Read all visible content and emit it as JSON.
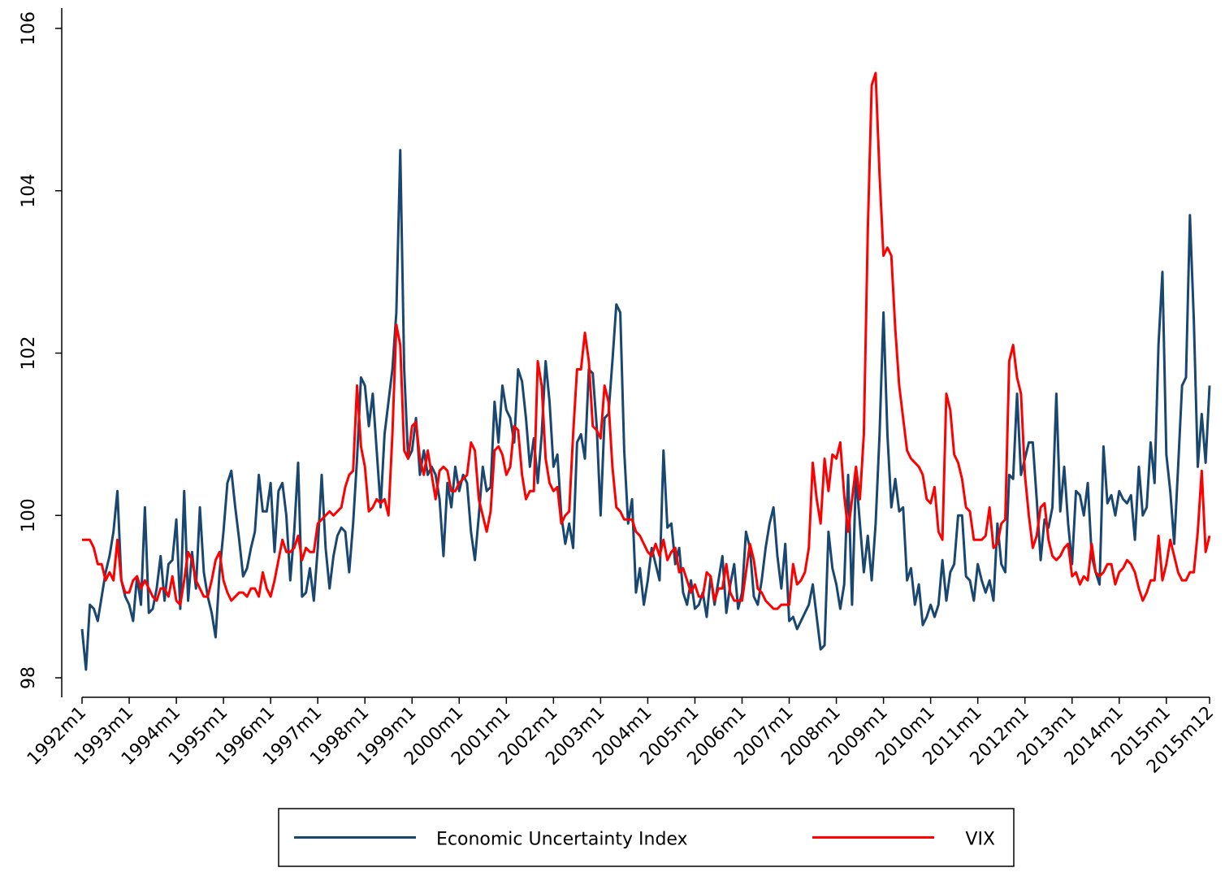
{
  "chart_data": {
    "type": "line",
    "categories": [
      "1992m1",
      null,
      null,
      null,
      null,
      null,
      null,
      null,
      null,
      null,
      null,
      null,
      "1993m1",
      null,
      null,
      null,
      null,
      null,
      null,
      null,
      null,
      null,
      null,
      null,
      "1994m1",
      null,
      null,
      null,
      null,
      null,
      null,
      null,
      null,
      null,
      null,
      null,
      "1995m1",
      null,
      null,
      null,
      null,
      null,
      null,
      null,
      null,
      null,
      null,
      null,
      "1996m1",
      null,
      null,
      null,
      null,
      null,
      null,
      null,
      null,
      null,
      null,
      null,
      "1997m1",
      null,
      null,
      null,
      null,
      null,
      null,
      null,
      null,
      null,
      null,
      null,
      "1998m1",
      null,
      null,
      null,
      null,
      null,
      null,
      null,
      null,
      null,
      null,
      null,
      "1999m1",
      null,
      null,
      null,
      null,
      null,
      null,
      null,
      null,
      null,
      null,
      null,
      "2000m1",
      null,
      null,
      null,
      null,
      null,
      null,
      null,
      null,
      null,
      null,
      null,
      "2001m1",
      null,
      null,
      null,
      null,
      null,
      null,
      null,
      null,
      null,
      null,
      null,
      "2002m1",
      null,
      null,
      null,
      null,
      null,
      null,
      null,
      null,
      null,
      null,
      null,
      "2003m1",
      null,
      null,
      null,
      null,
      null,
      null,
      null,
      null,
      null,
      null,
      null,
      "2004m1",
      null,
      null,
      null,
      null,
      null,
      null,
      null,
      null,
      null,
      null,
      null,
      "2005m1",
      null,
      null,
      null,
      null,
      null,
      null,
      null,
      null,
      null,
      null,
      null,
      "2006m1",
      null,
      null,
      null,
      null,
      null,
      null,
      null,
      null,
      null,
      null,
      null,
      "2007m1",
      null,
      null,
      null,
      null,
      null,
      null,
      null,
      null,
      null,
      null,
      null,
      "2008m1",
      null,
      null,
      null,
      null,
      null,
      null,
      null,
      null,
      null,
      null,
      null,
      "2009m1",
      null,
      null,
      null,
      null,
      null,
      null,
      null,
      null,
      null,
      null,
      null,
      "2010m1",
      null,
      null,
      null,
      null,
      null,
      null,
      null,
      null,
      null,
      null,
      null,
      "2011m1",
      null,
      null,
      null,
      null,
      null,
      null,
      null,
      null,
      null,
      null,
      null,
      "2012m1",
      null,
      null,
      null,
      null,
      null,
      null,
      null,
      null,
      null,
      null,
      null,
      "2013m1",
      null,
      null,
      null,
      null,
      null,
      null,
      null,
      null,
      null,
      null,
      null,
      "2014m1",
      null,
      null,
      null,
      null,
      null,
      null,
      null,
      null,
      null,
      null,
      null,
      "2015m1",
      null,
      null,
      null,
      null,
      null,
      null,
      null,
      null,
      null,
      null,
      "2015m12"
    ],
    "series": [
      {
        "name": "Economic Uncertainty Index",
        "color": "#1a476f",
        "values": [
          98.6,
          98.1,
          98.9,
          98.85,
          98.7,
          99.0,
          99.3,
          99.5,
          99.8,
          100.3,
          99.2,
          99.0,
          98.9,
          98.7,
          99.25,
          98.9,
          100.1,
          98.8,
          98.85,
          99.1,
          99.5,
          98.95,
          99.4,
          99.45,
          99.95,
          98.85,
          100.3,
          98.95,
          99.55,
          99.1,
          100.1,
          99.3,
          99.0,
          98.8,
          98.5,
          99.3,
          99.8,
          100.4,
          100.55,
          100.1,
          99.7,
          99.25,
          99.35,
          99.6,
          99.8,
          100.5,
          100.05,
          100.05,
          100.4,
          99.55,
          100.3,
          100.4,
          100.0,
          99.2,
          99.8,
          100.65,
          99.0,
          99.05,
          99.35,
          98.95,
          99.6,
          100.5,
          99.6,
          99.1,
          99.5,
          99.75,
          99.85,
          99.8,
          99.3,
          99.9,
          100.7,
          101.7,
          101.6,
          101.1,
          101.5,
          100.8,
          100.1,
          101.0,
          101.4,
          101.8,
          102.5,
          104.5,
          101.8,
          100.7,
          100.8,
          101.2,
          100.5,
          100.8,
          100.5,
          100.6,
          100.5,
          100.2,
          99.5,
          100.4,
          100.1,
          100.6,
          100.3,
          100.5,
          100.4,
          99.8,
          99.45,
          100.0,
          100.6,
          100.3,
          100.35,
          101.4,
          100.9,
          101.6,
          101.3,
          101.2,
          100.9,
          101.8,
          101.65,
          101.2,
          100.6,
          100.95,
          100.4,
          101.0,
          101.9,
          101.4,
          100.6,
          100.75,
          100.0,
          99.65,
          99.9,
          99.6,
          100.9,
          101.0,
          100.7,
          101.8,
          101.75,
          101.1,
          100.0,
          101.2,
          101.25,
          101.9,
          102.6,
          102.5,
          100.8,
          99.9,
          100.2,
          99.05,
          99.35,
          98.9,
          99.2,
          99.6,
          99.4,
          99.2,
          100.8,
          99.85,
          99.9,
          99.4,
          99.6,
          99.05,
          98.9,
          99.2,
          98.85,
          98.9,
          99.05,
          98.75,
          99.25,
          98.9,
          99.2,
          99.5,
          98.8,
          99.15,
          99.4,
          98.85,
          99.05,
          99.8,
          99.6,
          99.0,
          98.9,
          99.2,
          99.6,
          99.9,
          100.1,
          99.5,
          99.1,
          99.65,
          98.7,
          98.75,
          98.6,
          98.7,
          98.8,
          98.9,
          99.15,
          98.75,
          98.35,
          98.4,
          99.8,
          99.35,
          99.15,
          98.85,
          99.15,
          100.5,
          98.9,
          100.5,
          99.9,
          99.3,
          99.75,
          99.2,
          99.9,
          101.0,
          102.5,
          101.0,
          100.1,
          100.45,
          100.05,
          100.1,
          99.2,
          99.35,
          98.9,
          99.15,
          98.65,
          98.75,
          98.9,
          98.75,
          98.9,
          99.45,
          98.95,
          99.3,
          99.4,
          100.0,
          100.0,
          99.25,
          99.2,
          98.95,
          99.4,
          99.2,
          99.05,
          99.2,
          98.95,
          99.9,
          99.4,
          99.3,
          100.5,
          100.45,
          101.5,
          100.5,
          100.7,
          100.9,
          100.9,
          100.2,
          99.45,
          99.95,
          99.85,
          100.1,
          101.5,
          100.05,
          100.6,
          99.9,
          99.4,
          100.3,
          100.25,
          100.0,
          100.4,
          99.5,
          99.3,
          99.15,
          100.85,
          100.15,
          100.25,
          100.0,
          100.3,
          100.2,
          100.15,
          100.25,
          99.7,
          100.6,
          100.0,
          100.1,
          100.9,
          100.4,
          102.1,
          103.0,
          100.75,
          100.3,
          99.65,
          100.6,
          101.6,
          101.7,
          103.7,
          102.4,
          100.6,
          101.25,
          100.65,
          101.6
        ]
      },
      {
        "name": "VIX",
        "color": "#ff0000",
        "values": [
          99.7,
          99.7,
          99.7,
          99.6,
          99.4,
          99.4,
          99.2,
          99.3,
          99.2,
          99.7,
          99.2,
          99.05,
          99.05,
          99.2,
          99.25,
          99.1,
          99.2,
          99.1,
          99.0,
          98.95,
          99.1,
          99.1,
          99.0,
          99.25,
          98.95,
          98.9,
          99.2,
          99.55,
          99.45,
          99.2,
          99.1,
          99.0,
          99.0,
          99.2,
          99.45,
          99.55,
          99.2,
          99.05,
          98.95,
          99.0,
          99.05,
          99.05,
          99.0,
          99.1,
          99.1,
          99.0,
          99.3,
          99.1,
          99.0,
          99.2,
          99.45,
          99.7,
          99.55,
          99.55,
          99.6,
          99.75,
          99.45,
          99.6,
          99.55,
          99.55,
          99.9,
          99.95,
          100.0,
          100.05,
          100.0,
          100.05,
          100.1,
          100.35,
          100.5,
          100.55,
          101.6,
          100.85,
          100.6,
          100.05,
          100.1,
          100.2,
          100.15,
          100.2,
          100.0,
          101.0,
          102.35,
          102.1,
          100.8,
          100.7,
          101.1,
          101.15,
          100.7,
          100.5,
          100.8,
          100.5,
          100.2,
          100.55,
          100.6,
          100.55,
          100.3,
          100.3,
          100.4,
          100.45,
          100.5,
          100.9,
          100.8,
          100.2,
          100.0,
          99.8,
          100.05,
          100.8,
          100.85,
          100.75,
          100.5,
          100.6,
          101.1,
          101.05,
          100.5,
          100.2,
          100.3,
          100.3,
          101.9,
          101.6,
          100.7,
          100.4,
          100.3,
          100.35,
          99.9,
          100.0,
          100.05,
          101.0,
          101.8,
          101.8,
          102.25,
          101.9,
          101.1,
          101.05,
          100.95,
          101.6,
          101.4,
          100.6,
          100.1,
          100.05,
          99.95,
          99.95,
          99.95,
          99.8,
          99.75,
          99.65,
          99.55,
          99.5,
          99.65,
          99.5,
          99.7,
          99.45,
          99.55,
          99.6,
          99.3,
          99.35,
          99.2,
          99.05,
          99.15,
          99.0,
          99.0,
          99.3,
          99.25,
          98.95,
          99.1,
          99.1,
          99.4,
          99.05,
          98.95,
          98.95,
          98.95,
          99.3,
          99.65,
          99.45,
          99.1,
          99.05,
          98.95,
          98.9,
          98.85,
          98.85,
          98.9,
          98.9,
          98.9,
          99.4,
          99.15,
          99.2,
          99.3,
          99.6,
          100.65,
          100.2,
          99.9,
          100.7,
          100.3,
          100.75,
          100.7,
          100.9,
          100.25,
          99.8,
          100.2,
          100.6,
          100.2,
          101.0,
          103.5,
          105.3,
          105.45,
          104.2,
          103.2,
          103.3,
          103.2,
          102.3,
          101.6,
          101.2,
          100.8,
          100.7,
          100.65,
          100.6,
          100.5,
          100.2,
          100.15,
          100.35,
          99.8,
          99.7,
          101.5,
          101.3,
          100.75,
          100.65,
          100.45,
          100.1,
          100.05,
          99.7,
          99.7,
          99.7,
          99.75,
          100.1,
          99.6,
          99.65,
          99.9,
          99.95,
          101.9,
          102.1,
          101.7,
          101.5,
          100.5,
          100.0,
          99.6,
          99.75,
          100.1,
          100.15,
          99.7,
          99.5,
          99.45,
          99.5,
          99.6,
          99.65,
          99.25,
          99.3,
          99.15,
          99.25,
          99.2,
          99.65,
          99.3,
          99.25,
          99.3,
          99.4,
          99.4,
          99.15,
          99.3,
          99.35,
          99.45,
          99.4,
          99.3,
          99.1,
          98.95,
          99.05,
          99.2,
          99.2,
          99.75,
          99.2,
          99.4,
          99.7,
          99.5,
          99.3,
          99.2,
          99.2,
          99.3,
          99.3,
          99.8,
          100.55,
          99.55,
          99.75
        ]
      }
    ],
    "ylim": [
      97.76,
      106.25
    ],
    "yticks": [
      98,
      100,
      102,
      104,
      106
    ],
    "grid": false,
    "legend": "bottom"
  }
}
